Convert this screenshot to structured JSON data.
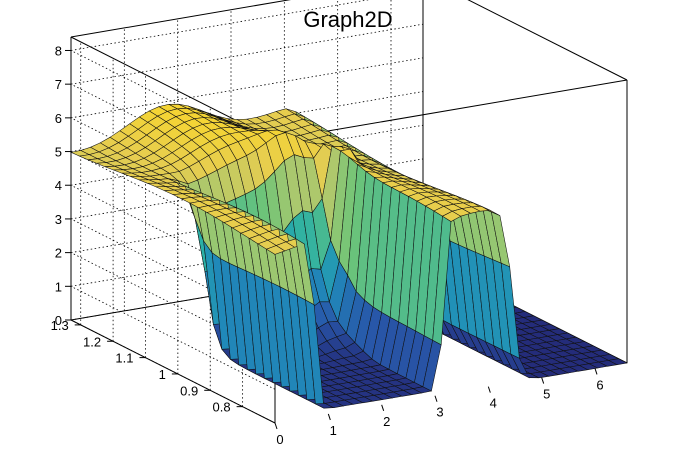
{
  "canvas": {
    "background": "#ffffff"
  },
  "chart_data": {
    "type": "surface",
    "title": "Graph2D",
    "xlabel": "",
    "ylabel": "",
    "zlabel": "",
    "xlim": [
      0,
      6.6
    ],
    "ylim": [
      0.7,
      1.33
    ],
    "zlim": [
      0,
      8.4
    ],
    "x_ticks": [
      "0",
      "1",
      "2",
      "3",
      "4",
      "5",
      "6"
    ],
    "y_ticks": [
      "0.8",
      "0.9",
      "1",
      "1.1",
      "1.2",
      "1.3"
    ],
    "z_ticks": [
      "0",
      "1",
      "2",
      "3",
      "4",
      "5",
      "6",
      "7",
      "8"
    ],
    "grid": true,
    "colormap": "viridis",
    "surface_description": "Plateau near z=5-6.5 for x<3.2 dropping to a deep trench at about z=0 for y<1.05; sharp peak near x=3.4, y=1.05, z=5.5; drop to 0 for x>4.4; flat floor at 0 from x=4.6 to 6.6",
    "grid_resolution": [
      36,
      24
    ]
  }
}
